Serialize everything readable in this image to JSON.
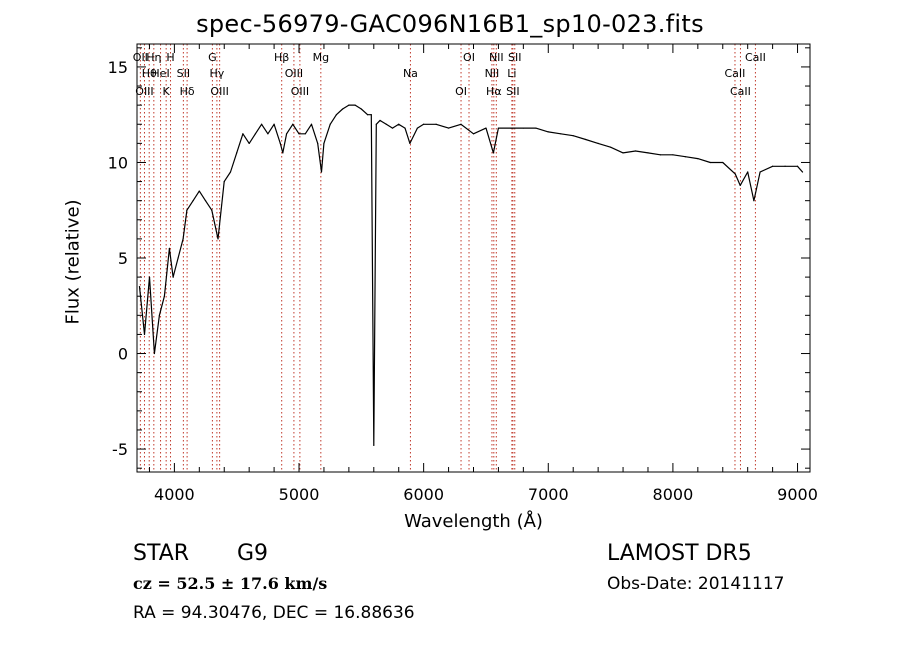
{
  "title": "spec-56979-GAC096N16B1_sp10-023.fits",
  "xlabel": "Wavelength (Å)",
  "ylabel": "Flux (relative)",
  "info": {
    "object_class": "STAR",
    "subclass": "G9",
    "survey": "LAMOST DR5",
    "cz": "cz = 52.5 ± 17.6 km/s",
    "obs_date": "Obs-Date: 20141117",
    "coords": "RA =  94.30476, DEC =  16.88636"
  },
  "colors": {
    "spectrum": "#000000",
    "line_marker": "#c0392b",
    "axes": "#000000"
  },
  "chart_data": {
    "type": "line",
    "title": "spec-56979-GAC096N16B1_sp10-023.fits",
    "xlabel": "Wavelength (Å)",
    "ylabel": "Flux (relative)",
    "xlim": [
      3700,
      9100
    ],
    "ylim": [
      -6.2,
      16.2
    ],
    "xticks": [
      4000,
      5000,
      6000,
      7000,
      8000,
      9000
    ],
    "yticks": [
      -5,
      0,
      5,
      10,
      15
    ],
    "x_minor_step": 200,
    "y_minor_step": 1,
    "grid": false,
    "legend": "none",
    "series": [
      {
        "x": [
          3720,
          3760,
          3800,
          3840,
          3880,
          3920,
          3960,
          3990,
          4030,
          4070,
          4100,
          4150,
          4200,
          4250,
          4300,
          4350,
          4400,
          4450,
          4500,
          4550,
          4600,
          4650,
          4700,
          4750,
          4800,
          4850,
          4870,
          4900,
          4950,
          5000,
          5050,
          5100,
          5150,
          5180,
          5200,
          5250,
          5300,
          5350,
          5400,
          5450,
          5500,
          5550,
          5580,
          5600,
          5620,
          5650,
          5700,
          5750,
          5800,
          5850,
          5890,
          5950,
          6000,
          6100,
          6200,
          6300,
          6400,
          6500,
          6560,
          6600,
          6700,
          6800,
          6900,
          7000,
          7100,
          7200,
          7300,
          7400,
          7500,
          7600,
          7700,
          7800,
          7900,
          8000,
          8100,
          8200,
          8300,
          8400,
          8500,
          8540,
          8600,
          8650,
          8700,
          8800,
          8900,
          9000,
          9040
        ],
        "y": [
          3.5,
          1.0,
          4.0,
          0.0,
          2.0,
          3.0,
          5.5,
          4.0,
          5.0,
          6.0,
          7.5,
          8.0,
          8.5,
          8.0,
          7.5,
          6.0,
          9.0,
          9.5,
          10.5,
          11.5,
          11.0,
          11.5,
          12.0,
          11.5,
          12.0,
          11.0,
          10.5,
          11.5,
          12.0,
          11.5,
          11.5,
          12.0,
          11.0,
          9.5,
          11.0,
          12.0,
          12.5,
          12.8,
          13.0,
          13.0,
          12.8,
          12.5,
          12.5,
          -4.8,
          12.0,
          12.2,
          12.0,
          11.8,
          12.0,
          11.8,
          11.0,
          11.8,
          12.0,
          12.0,
          11.8,
          12.0,
          11.5,
          11.8,
          10.5,
          11.8,
          11.8,
          11.8,
          11.8,
          11.6,
          11.5,
          11.4,
          11.2,
          11.0,
          10.8,
          10.5,
          10.6,
          10.5,
          10.4,
          10.4,
          10.3,
          10.2,
          10.0,
          10.0,
          9.4,
          8.8,
          9.5,
          8.0,
          9.5,
          9.8,
          9.8,
          9.8,
          9.5
        ]
      }
    ],
    "spectral_lines": [
      {
        "label": "OII",
        "wavelength": 3727
      },
      {
        "label": "Hθ",
        "wavelength": 3798
      },
      {
        "label": "OIII",
        "wavelength": 3760
      },
      {
        "label": "Hη",
        "wavelength": 3835
      },
      {
        "label": "HeI",
        "wavelength": 3889
      },
      {
        "label": "K",
        "wavelength": 3934
      },
      {
        "label": "H",
        "wavelength": 3969
      },
      {
        "label": "SII",
        "wavelength": 4072
      },
      {
        "label": "Hδ",
        "wavelength": 4102
      },
      {
        "label": "G",
        "wavelength": 4305
      },
      {
        "label": "Hγ",
        "wavelength": 4341
      },
      {
        "label": "OIII",
        "wavelength": 4363
      },
      {
        "label": "Hβ",
        "wavelength": 4861
      },
      {
        "label": "OIII",
        "wavelength": 4959
      },
      {
        "label": "OIII",
        "wavelength": 5007
      },
      {
        "label": "Mg",
        "wavelength": 5175
      },
      {
        "label": "Na",
        "wavelength": 5894
      },
      {
        "label": "OI",
        "wavelength": 6300
      },
      {
        "label": "OI",
        "wavelength": 6364
      },
      {
        "label": "NII",
        "wavelength": 6548
      },
      {
        "label": "Hα",
        "wavelength": 6563
      },
      {
        "label": "NII",
        "wavelength": 6583
      },
      {
        "label": "Li",
        "wavelength": 6708
      },
      {
        "label": "SII",
        "wavelength": 6716
      },
      {
        "label": "SII",
        "wavelength": 6731
      },
      {
        "label": "CaII",
        "wavelength": 8498
      },
      {
        "label": "CaII",
        "wavelength": 8542
      },
      {
        "label": "CaII",
        "wavelength": 8662
      }
    ]
  }
}
